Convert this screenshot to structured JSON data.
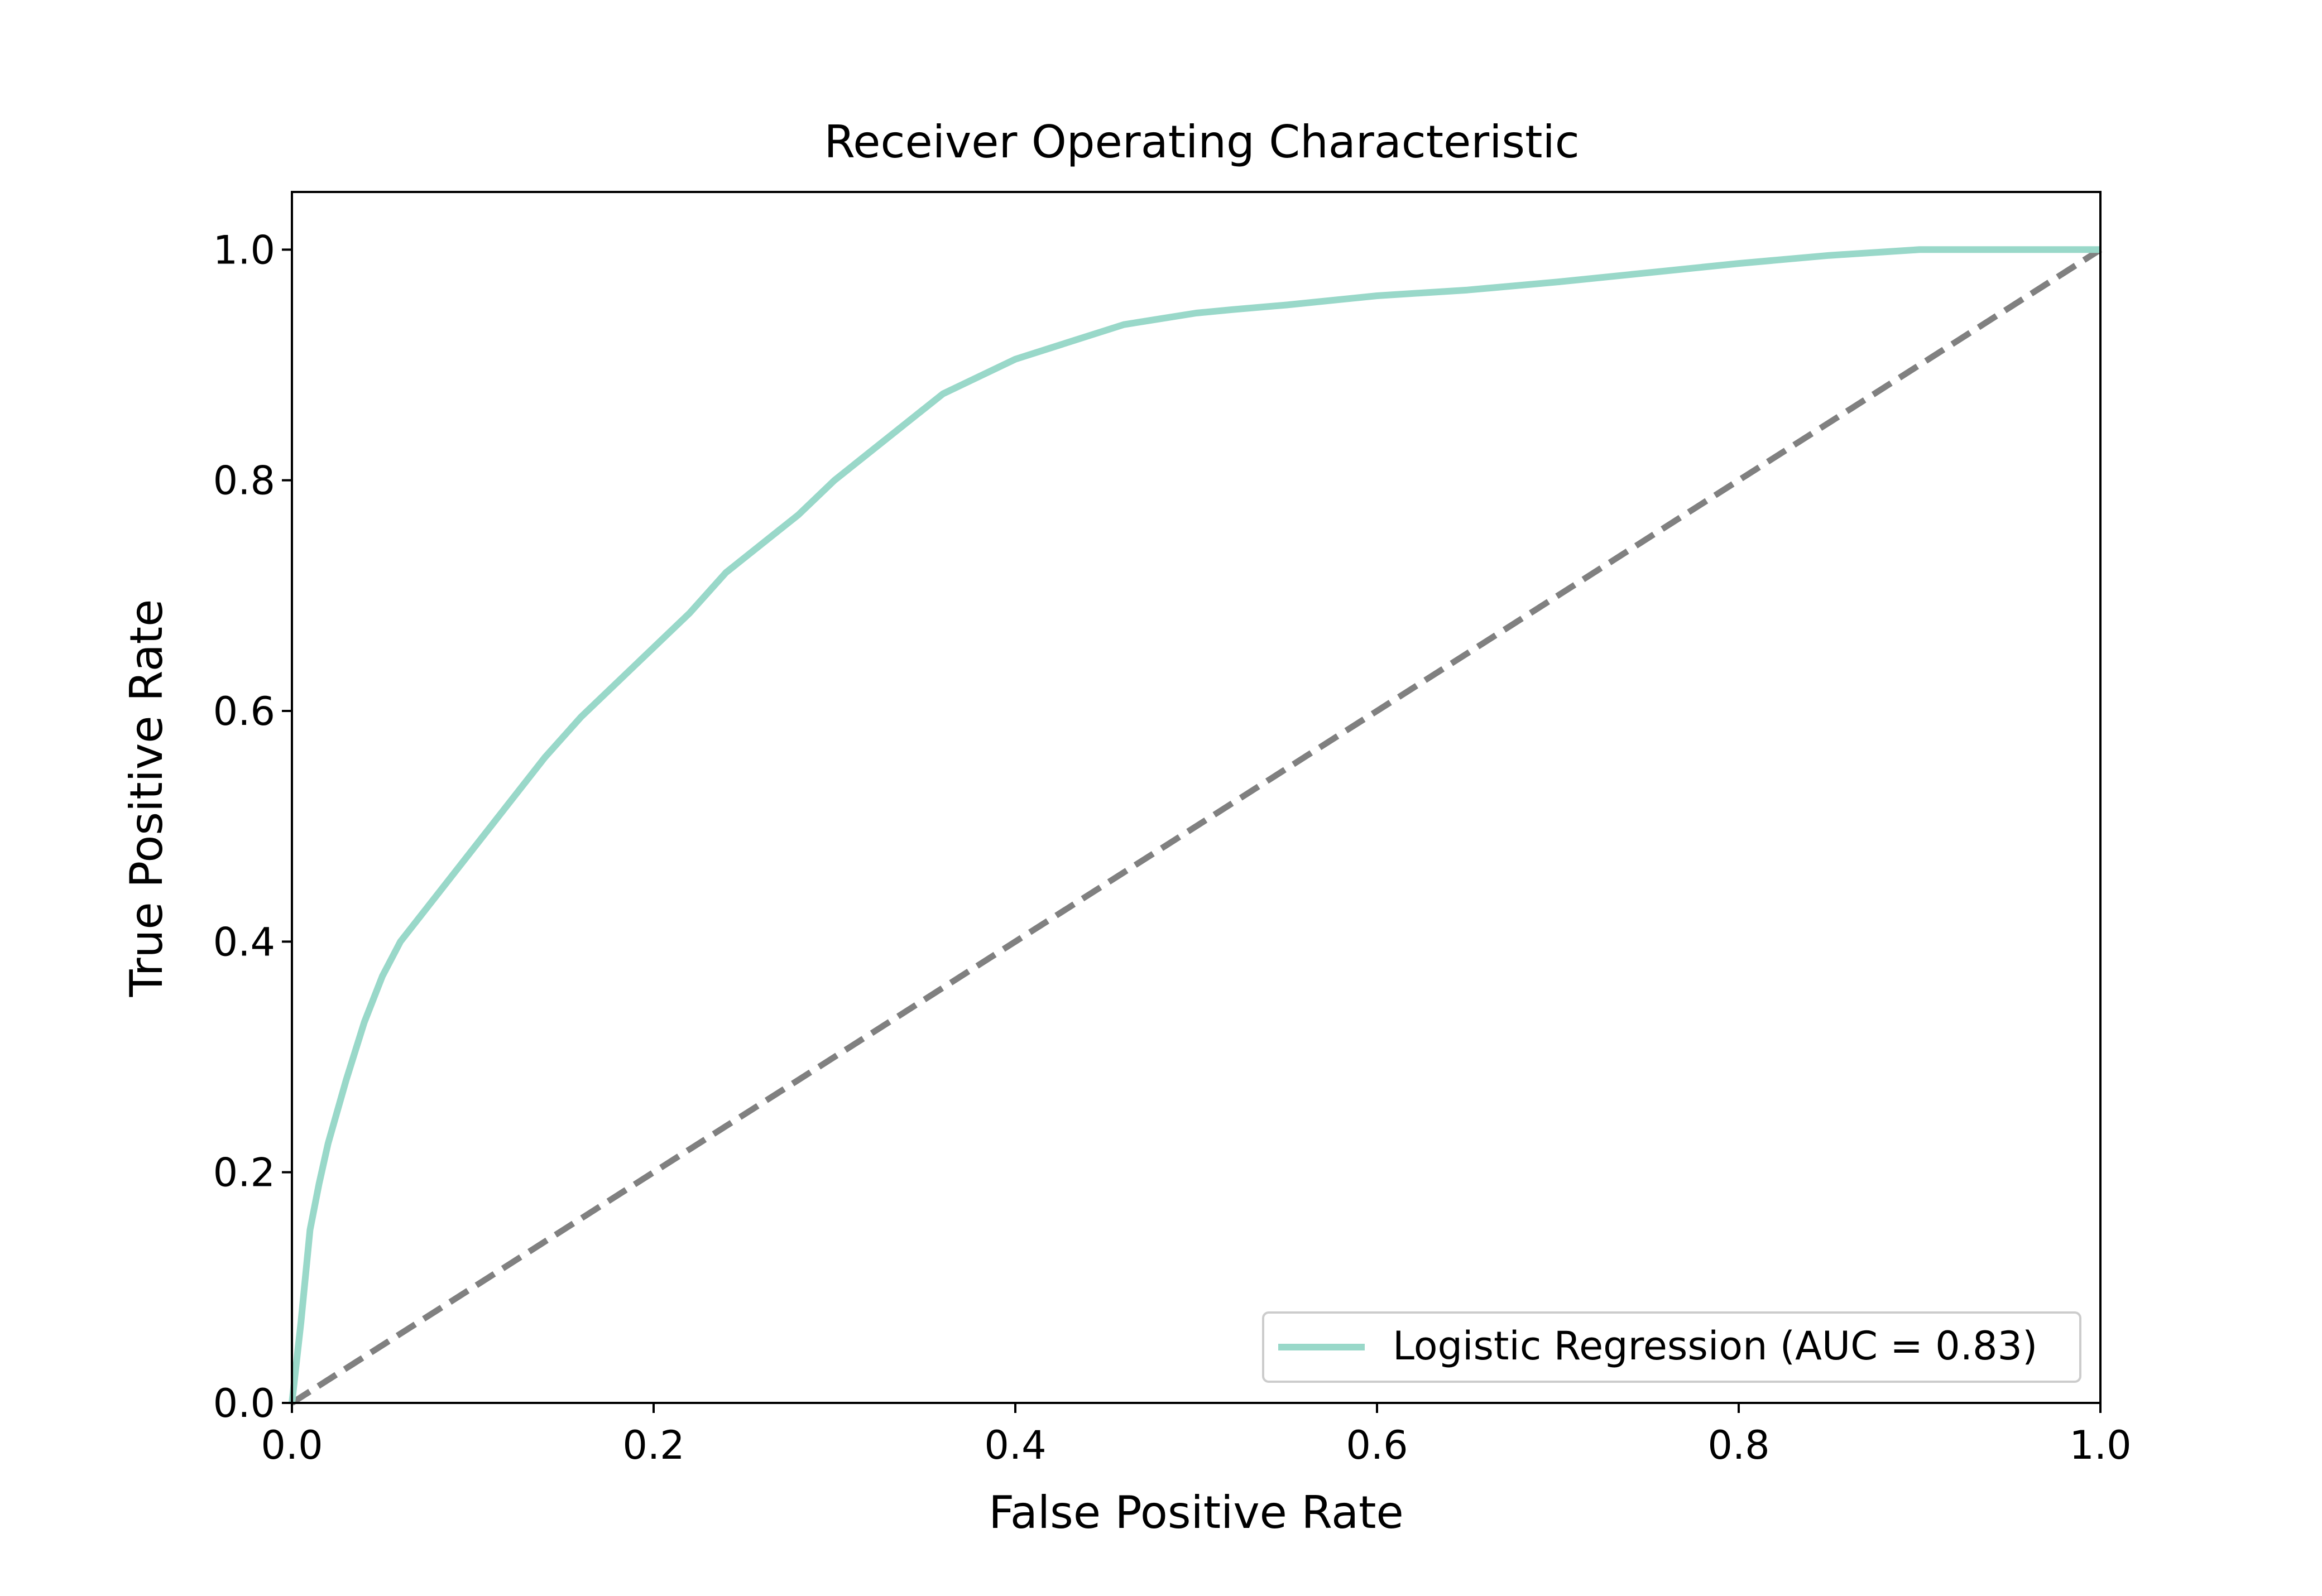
{
  "chart_data": {
    "type": "line",
    "title": "Receiver Operating Characteristic",
    "xlabel": "False Positive Rate",
    "ylabel": "True Positive Rate",
    "xlim": [
      0.0,
      1.0
    ],
    "ylim": [
      0.0,
      1.05
    ],
    "xticks": [
      0.0,
      0.2,
      0.4,
      0.6,
      0.8,
      1.0
    ],
    "yticks": [
      0.0,
      0.2,
      0.4,
      0.6,
      0.8,
      1.0
    ],
    "xtick_labels": [
      "0.0",
      "0.2",
      "0.4",
      "0.6",
      "0.8",
      "1.0"
    ],
    "ytick_labels": [
      "0.0",
      "0.2",
      "0.4",
      "0.6",
      "0.8",
      "1.0"
    ],
    "grid": false,
    "legend_position": "lower-right",
    "series": [
      {
        "name": "Logistic Regression (AUC = 0.83)",
        "color": "#99d8c9",
        "style": "solid",
        "x": [
          0.0,
          0.005,
          0.01,
          0.015,
          0.02,
          0.03,
          0.04,
          0.05,
          0.06,
          0.07,
          0.08,
          0.09,
          0.1,
          0.11,
          0.12,
          0.14,
          0.16,
          0.18,
          0.2,
          0.22,
          0.24,
          0.26,
          0.28,
          0.3,
          0.32,
          0.34,
          0.36,
          0.38,
          0.4,
          0.42,
          0.44,
          0.46,
          0.48,
          0.5,
          0.52,
          0.55,
          0.6,
          0.65,
          0.7,
          0.75,
          0.8,
          0.85,
          0.9,
          0.95,
          1.0
        ],
        "y": [
          0.0,
          0.07,
          0.15,
          0.19,
          0.225,
          0.28,
          0.33,
          0.37,
          0.4,
          0.42,
          0.44,
          0.46,
          0.48,
          0.5,
          0.52,
          0.56,
          0.595,
          0.625,
          0.655,
          0.685,
          0.72,
          0.745,
          0.77,
          0.8,
          0.825,
          0.85,
          0.875,
          0.89,
          0.905,
          0.915,
          0.925,
          0.935,
          0.94,
          0.945,
          0.948,
          0.952,
          0.96,
          0.965,
          0.972,
          0.98,
          0.988,
          0.995,
          1.0,
          1.0,
          1.0
        ]
      },
      {
        "name": "",
        "color": "#808080",
        "style": "dashed",
        "x": [
          0.0,
          1.0
        ],
        "y": [
          0.0,
          1.0
        ]
      }
    ]
  }
}
